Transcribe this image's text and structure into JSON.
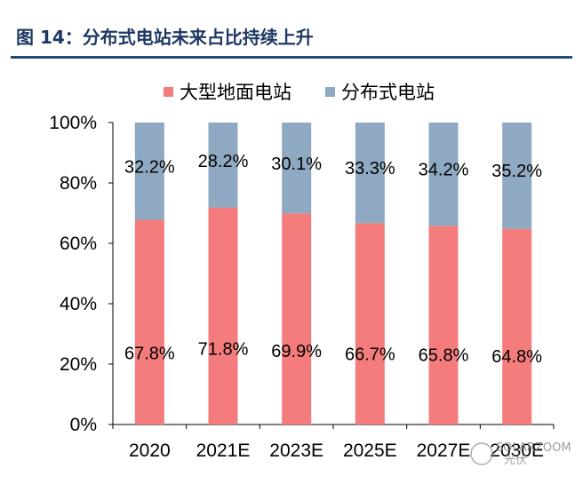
{
  "figure_title": "图 14：分布式电站未来占比持续上升",
  "watermark": {
    "top": "SOLARZOOM",
    "bottom": "光伏"
  },
  "colors": {
    "centralized": "#f47c7c",
    "distributed": "#8ea9c1",
    "title_rule": "#1f4e79",
    "title_text": "#1f3864"
  },
  "chart_data": {
    "type": "bar",
    "stacked": true,
    "percent_stacked": true,
    "categories": [
      "2020",
      "2021E",
      "2023E",
      "2025E",
      "2027E",
      "2030E"
    ],
    "series": [
      {
        "name": "大型地面电站",
        "values": [
          67.8,
          71.8,
          69.9,
          66.7,
          65.8,
          64.8
        ],
        "labels": [
          "67.8%",
          "71.8%",
          "69.9%",
          "66.7%",
          "65.8%",
          "64.8%"
        ],
        "color": "#f47c7c"
      },
      {
        "name": "分布式电站",
        "values": [
          32.2,
          28.2,
          30.1,
          33.3,
          34.2,
          35.2
        ],
        "labels": [
          "32.2%",
          "28.2%",
          "30.1%",
          "33.3%",
          "34.2%",
          "35.2%"
        ],
        "color": "#8ea9c1"
      }
    ],
    "y_ticks": [
      "0%",
      "20%",
      "40%",
      "60%",
      "80%",
      "100%"
    ],
    "ylim": [
      0,
      100
    ],
    "grid": false,
    "legend_position": "top"
  }
}
